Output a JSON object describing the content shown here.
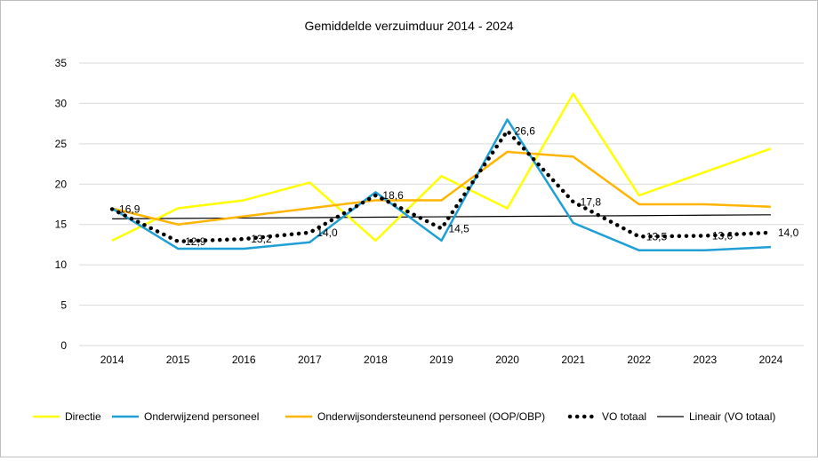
{
  "chart_data": {
    "type": "line",
    "title": "Gemiddelde verzuimduur  2014 - 2024",
    "xlabel": "",
    "ylabel": "",
    "ylim": [
      0,
      35
    ],
    "yticks": [
      0,
      5,
      10,
      15,
      20,
      25,
      30,
      35
    ],
    "categories": [
      "2014",
      "2015",
      "2016",
      "2017",
      "2018",
      "2019",
      "2020",
      "2021",
      "2022",
      "2023",
      "2024"
    ],
    "grid": "horizontal",
    "legend": "bottom",
    "series": [
      {
        "name": "Directie",
        "color": "#FFFF00",
        "style": "solid",
        "values": [
          13.0,
          17.0,
          18.0,
          20.2,
          13.0,
          21.0,
          17.0,
          31.2,
          18.6,
          21.5,
          24.4
        ]
      },
      {
        "name": "Onderwijzend personeel",
        "color": "#1F9FD5",
        "style": "solid",
        "values": [
          17.0,
          12.0,
          12.0,
          12.8,
          19.0,
          13.0,
          28.0,
          15.2,
          11.8,
          11.8,
          12.2
        ]
      },
      {
        "name": "Onderwijsondersteunend personeel (OOP/OBP)",
        "color": "#FFB400",
        "style": "solid",
        "values": [
          17.0,
          15.0,
          16.0,
          17.0,
          18.0,
          18.0,
          24.0,
          23.4,
          17.5,
          17.5,
          17.2
        ]
      },
      {
        "name": "VO totaal",
        "color": "#000000",
        "style": "dotted",
        "values": [
          16.9,
          12.9,
          13.2,
          14.0,
          18.6,
          14.5,
          26.6,
          17.8,
          13.5,
          13.6,
          14.0
        ],
        "labels": [
          "16,9",
          "12,9",
          "13,2",
          "14,0",
          "18,6",
          "14,5",
          "26,6",
          "17,8",
          "13,5",
          "13,6",
          "14,0"
        ]
      },
      {
        "name": "Lineair (VO totaal)",
        "color": "#000000",
        "style": "thin",
        "values": [
          15.7,
          15.75,
          15.8,
          15.85,
          15.9,
          15.95,
          16.0,
          16.05,
          16.1,
          16.15,
          16.2
        ]
      }
    ]
  }
}
